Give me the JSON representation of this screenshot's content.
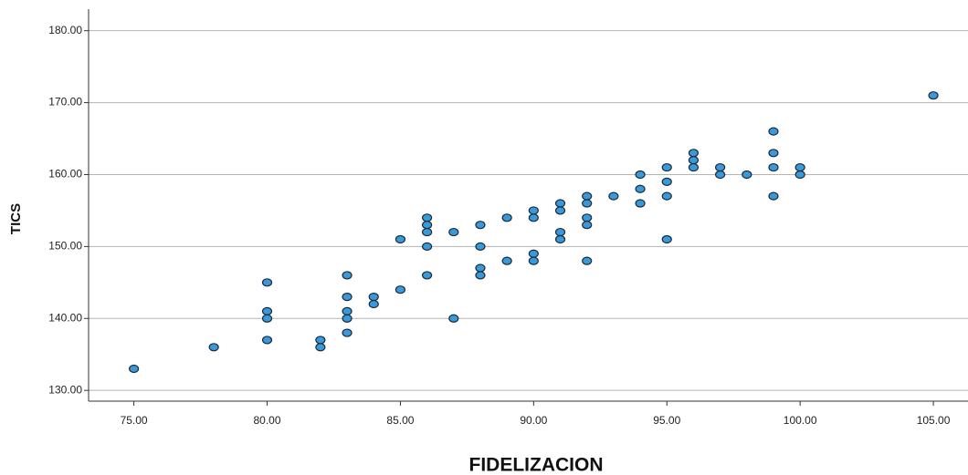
{
  "chart_data": {
    "type": "scatter",
    "x_label": "FIDELIZACION",
    "y_label": "TICS",
    "x": [
      75,
      78,
      80,
      80,
      80,
      80,
      82,
      82,
      83,
      83,
      83,
      83,
      83,
      84,
      84,
      85,
      85,
      86,
      86,
      86,
      86,
      86,
      87,
      87,
      88,
      88,
      88,
      88,
      89,
      89,
      90,
      90,
      90,
      90,
      91,
      91,
      91,
      91,
      92,
      92,
      92,
      92,
      92,
      93,
      94,
      94,
      94,
      95,
      95,
      95,
      95,
      96,
      96,
      96,
      97,
      97,
      98,
      99,
      99,
      99,
      99,
      100,
      100,
      105
    ],
    "series": [
      {
        "color": "#3a9ad9",
        "values": [
          133,
          136,
          145,
          141,
          140,
          137,
          137,
          136,
          146,
          143,
          141,
          140,
          138,
          143,
          142,
          151,
          144,
          154,
          153,
          152,
          150,
          146,
          152,
          140,
          153,
          150,
          147,
          146,
          154,
          148,
          155,
          154,
          149,
          148,
          156,
          155,
          152,
          151,
          157,
          156,
          154,
          153,
          148,
          157,
          160,
          158,
          156,
          161,
          159,
          157,
          151,
          163,
          162,
          161,
          161,
          160,
          160,
          166,
          163,
          161,
          157,
          161,
          160,
          171
        ]
      }
    ],
    "xlim": [
      73.3,
      106.3
    ],
    "ylim": [
      128.5,
      183
    ],
    "xticks": [
      {
        "value": 75,
        "label": "75.00"
      },
      {
        "value": 80,
        "label": "80.00"
      },
      {
        "value": 85,
        "label": "85.00"
      },
      {
        "value": 90,
        "label": "90.00"
      },
      {
        "value": 95,
        "label": "95.00"
      },
      {
        "value": 100,
        "label": "100.00"
      },
      {
        "value": 105,
        "label": "105.00"
      }
    ],
    "yticks": [
      {
        "value": 130,
        "label": "130.00"
      },
      {
        "value": 140,
        "label": "140.00"
      },
      {
        "value": 150,
        "label": "150.00"
      },
      {
        "value": 160,
        "label": "160.00"
      },
      {
        "value": 170,
        "label": "170.00"
      },
      {
        "value": 180,
        "label": "180.00"
      }
    ],
    "grid": true
  }
}
